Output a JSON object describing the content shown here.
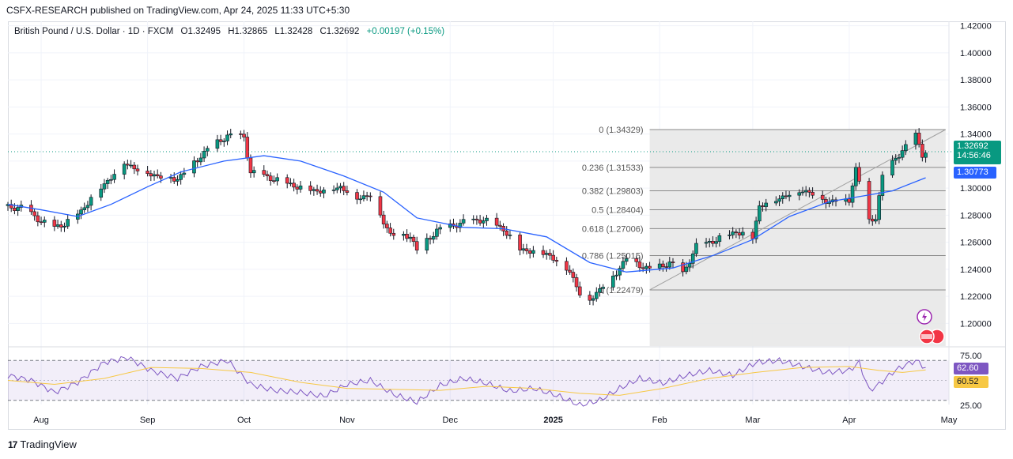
{
  "header": {
    "publisher_line": "CSFX-RESEARCH published on TradingView.com, Apr 24, 2025 11:33 UTC+5:30"
  },
  "legend": {
    "symbol": "British Pound / U.S. Dollar · 1D · FXCM",
    "open": "O1.32495",
    "high": "H1.32865",
    "low": "L1.32428",
    "close": "C1.32692",
    "change": "+0.00197 (+0.15%)"
  },
  "price_tags": {
    "last_price": "1.32692",
    "countdown": "14:56:46",
    "ma_value": "1.30773",
    "rsi_value": "62.60",
    "rsi_ma_value": "60.52"
  },
  "colors": {
    "bull": "#089981",
    "bear": "#f23645",
    "ma": "#2962ff",
    "rsi": "#7e57c2",
    "rsi_ma": "#f7c844",
    "last_price": "#089981"
  },
  "brand": {
    "name": "TradingView",
    "icon": "tradingview-logo-icon"
  },
  "chart_data": {
    "type": "candlestick",
    "title": "British Pound / U.S. Dollar · 1D · FXCM",
    "y_ticks": [
      "1.42000",
      "1.40000",
      "1.38000",
      "1.36000",
      "1.34000",
      "1.32000",
      "1.30000",
      "1.28000",
      "1.26000",
      "1.24000",
      "1.22000",
      "1.20000"
    ],
    "y_range": [
      1.1833,
      1.4233
    ],
    "x_ticks": [
      "Aug",
      "Sep",
      "Oct",
      "Nov",
      "Dec",
      "2025",
      "Feb",
      "Mar",
      "Apr",
      "May"
    ],
    "x_tick_dates": [
      "2024-08-01",
      "2024-09-02",
      "2024-10-01",
      "2024-11-01",
      "2024-12-02",
      "2025-01-02",
      "2025-02-03",
      "2025-03-03",
      "2025-04-01",
      "2025-05-01"
    ],
    "date_range": [
      "2024-07-22",
      "2025-05-01"
    ],
    "last_price": 1.32692,
    "ma_last": 1.30773,
    "price_path": [
      [
        "2024-07-22",
        1.286
      ],
      [
        "2024-07-26",
        1.286
      ],
      [
        "2024-08-01",
        1.276
      ],
      [
        "2024-08-05",
        1.271
      ],
      [
        "2024-08-08",
        1.274
      ],
      [
        "2024-08-13",
        1.283
      ],
      [
        "2024-08-16",
        1.293
      ],
      [
        "2024-08-20",
        1.303
      ],
      [
        "2024-08-26",
        1.319
      ],
      [
        "2024-08-30",
        1.314
      ],
      [
        "2024-09-05",
        1.309
      ],
      [
        "2024-09-11",
        1.307
      ],
      [
        "2024-09-16",
        1.319
      ],
      [
        "2024-09-20",
        1.329
      ],
      [
        "2024-09-26",
        1.339
      ],
      [
        "2024-10-01",
        1.338
      ],
      [
        "2024-10-03",
        1.312
      ],
      [
        "2024-10-10",
        1.307
      ],
      [
        "2024-10-16",
        1.302
      ],
      [
        "2024-10-23",
        1.298
      ],
      [
        "2024-10-30",
        1.301
      ],
      [
        "2024-11-04",
        1.293
      ],
      [
        "2024-11-08",
        1.295
      ],
      [
        "2024-11-14",
        1.266
      ],
      [
        "2024-11-20",
        1.265
      ],
      [
        "2024-11-22",
        1.254
      ],
      [
        "2024-11-28",
        1.269
      ],
      [
        "2024-12-06",
        1.275
      ],
      [
        "2024-12-12",
        1.277
      ],
      [
        "2024-12-18",
        1.27
      ],
      [
        "2024-12-23",
        1.255
      ],
      [
        "2024-12-31",
        1.252
      ],
      [
        "2025-01-07",
        1.239
      ],
      [
        "2025-01-10",
        1.222
      ],
      [
        "2025-01-13",
        1.218
      ],
      [
        "2025-01-20",
        1.235
      ],
      [
        "2025-01-24",
        1.248
      ],
      [
        "2025-01-31",
        1.24
      ],
      [
        "2025-02-06",
        1.245
      ],
      [
        "2025-02-10",
        1.237
      ],
      [
        "2025-02-14",
        1.257
      ],
      [
        "2025-02-20",
        1.262
      ],
      [
        "2025-02-26",
        1.268
      ],
      [
        "2025-03-03",
        1.264
      ],
      [
        "2025-03-05",
        1.287
      ],
      [
        "2025-03-10",
        1.292
      ],
      [
        "2025-03-18",
        1.299
      ],
      [
        "2025-03-26",
        1.29
      ],
      [
        "2025-04-01",
        1.292
      ],
      [
        "2025-04-03",
        1.314
      ],
      [
        "2025-04-07",
        1.276
      ],
      [
        "2025-04-09",
        1.279
      ],
      [
        "2025-04-11",
        1.308
      ],
      [
        "2025-04-15",
        1.323
      ],
      [
        "2025-04-18",
        1.33
      ],
      [
        "2025-04-21",
        1.34
      ],
      [
        "2025-04-23",
        1.325
      ],
      [
        "2025-04-24",
        1.3269
      ]
    ],
    "moving_average_path": [
      [
        "2024-07-22",
        1.288
      ],
      [
        "2024-08-01",
        1.284
      ],
      [
        "2024-08-12",
        1.279
      ],
      [
        "2024-08-22",
        1.288
      ],
      [
        "2024-09-02",
        1.301
      ],
      [
        "2024-09-12",
        1.312
      ],
      [
        "2024-09-25",
        1.32
      ],
      [
        "2024-10-07",
        1.324
      ],
      [
        "2024-10-18",
        1.32
      ],
      [
        "2024-10-31",
        1.309
      ],
      [
        "2024-11-12",
        1.297
      ],
      [
        "2024-11-22",
        1.278
      ],
      [
        "2024-12-06",
        1.271
      ],
      [
        "2024-12-18",
        1.27
      ],
      [
        "2024-12-31",
        1.264
      ],
      [
        "2025-01-13",
        1.245
      ],
      [
        "2025-01-24",
        1.238
      ],
      [
        "2025-02-07",
        1.241
      ],
      [
        "2025-02-20",
        1.251
      ],
      [
        "2025-03-03",
        1.262
      ],
      [
        "2025-03-14",
        1.279
      ],
      [
        "2025-03-26",
        1.29
      ],
      [
        "2025-04-07",
        1.295
      ],
      [
        "2025-04-14",
        1.298
      ],
      [
        "2025-04-24",
        1.3077
      ]
    ],
    "fibonacci": {
      "start_date": "2025-01-31",
      "end_date": "2025-04-30",
      "levels": [
        {
          "label": "0 (1.34329)",
          "price": 1.34329
        },
        {
          "label": "0.236 (1.31533)",
          "price": 1.31533
        },
        {
          "label": "0.382 (1.29803)",
          "price": 1.29803
        },
        {
          "label": "0.5 (1.28404)",
          "price": 1.28404
        },
        {
          "label": "0.618 (1.27006)",
          "price": 1.27006
        },
        {
          "label": "0.786 (1.25015)",
          "price": 1.25015
        },
        {
          "label": "1 (1.22479)",
          "price": 1.22479
        }
      ]
    },
    "trendline": [
      [
        "2025-01-31",
        1.2248
      ],
      [
        "2025-04-30",
        1.3433
      ]
    ],
    "rsi": {
      "y_ticks": [
        "75.00",
        "25.00"
      ],
      "y_range": [
        25,
        75
      ],
      "upper_band": 70,
      "lower_band": 30,
      "mid": 50,
      "last": 62.6,
      "ma_last": 60.52,
      "path": [
        [
          "2024-07-22",
          55
        ],
        [
          "2024-07-29",
          50
        ],
        [
          "2024-08-05",
          38
        ],
        [
          "2024-08-12",
          48
        ],
        [
          "2024-08-20",
          68
        ],
        [
          "2024-08-27",
          73
        ],
        [
          "2024-09-03",
          60
        ],
        [
          "2024-09-11",
          52
        ],
        [
          "2024-09-18",
          64
        ],
        [
          "2024-09-26",
          70
        ],
        [
          "2024-10-03",
          46
        ],
        [
          "2024-10-10",
          40
        ],
        [
          "2024-10-18",
          38
        ],
        [
          "2024-10-25",
          34
        ],
        [
          "2024-11-01",
          46
        ],
        [
          "2024-11-08",
          50
        ],
        [
          "2024-11-15",
          36
        ],
        [
          "2024-11-22",
          28
        ],
        [
          "2024-11-29",
          45
        ],
        [
          "2024-12-06",
          52
        ],
        [
          "2024-12-13",
          47
        ],
        [
          "2024-12-20",
          39
        ],
        [
          "2024-12-27",
          42
        ],
        [
          "2025-01-03",
          35
        ],
        [
          "2025-01-10",
          25
        ],
        [
          "2025-01-16",
          30
        ],
        [
          "2025-01-22",
          42
        ],
        [
          "2025-01-28",
          52
        ],
        [
          "2025-02-04",
          47
        ],
        [
          "2025-02-11",
          55
        ],
        [
          "2025-02-18",
          60
        ],
        [
          "2025-02-25",
          55
        ],
        [
          "2025-03-04",
          68
        ],
        [
          "2025-03-11",
          70
        ],
        [
          "2025-03-18",
          64
        ],
        [
          "2025-03-25",
          58
        ],
        [
          "2025-04-01",
          60
        ],
        [
          "2025-04-04",
          68
        ],
        [
          "2025-04-07",
          40
        ],
        [
          "2025-04-10",
          46
        ],
        [
          "2025-04-14",
          58
        ],
        [
          "2025-04-17",
          64
        ],
        [
          "2025-04-21",
          70
        ],
        [
          "2025-04-24",
          62.6
        ]
      ],
      "ma_path": [
        [
          "2024-07-22",
          50
        ],
        [
          "2024-08-05",
          46
        ],
        [
          "2024-08-20",
          52
        ],
        [
          "2024-09-03",
          63
        ],
        [
          "2024-09-18",
          62
        ],
        [
          "2024-10-03",
          58
        ],
        [
          "2024-10-18",
          48
        ],
        [
          "2024-11-01",
          42
        ],
        [
          "2024-11-15",
          41
        ],
        [
          "2024-11-29",
          40
        ],
        [
          "2024-12-13",
          44
        ],
        [
          "2024-12-27",
          42
        ],
        [
          "2025-01-10",
          37
        ],
        [
          "2025-01-22",
          35
        ],
        [
          "2025-02-04",
          42
        ],
        [
          "2025-02-18",
          52
        ],
        [
          "2025-03-04",
          58
        ],
        [
          "2025-03-18",
          63
        ],
        [
          "2025-04-01",
          64
        ],
        [
          "2025-04-10",
          60
        ],
        [
          "2025-04-17",
          58
        ],
        [
          "2025-04-24",
          60.5
        ]
      ]
    }
  }
}
